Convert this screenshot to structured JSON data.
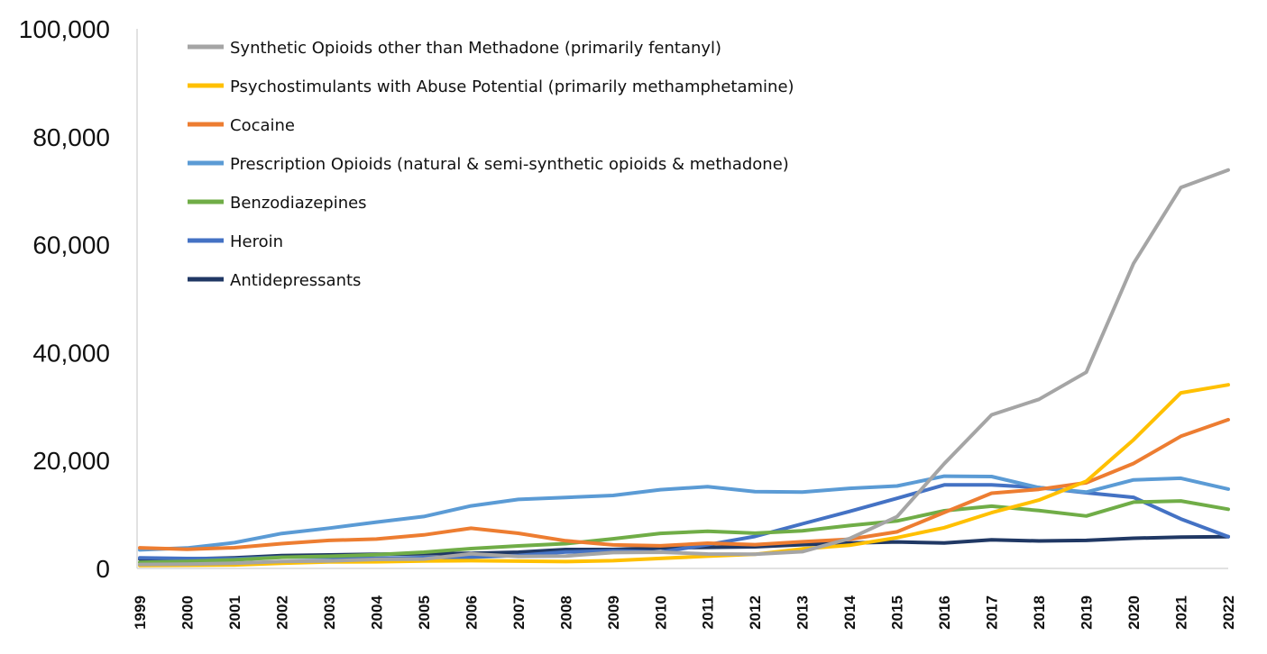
{
  "chart_data": {
    "type": "line",
    "title": "",
    "xlabel": "",
    "ylabel": "",
    "ylim": [
      0,
      100000
    ],
    "yticks": [
      "0",
      "20,000",
      "40,000",
      "60,000",
      "80,000",
      "100,000"
    ],
    "ytick_values": [
      0,
      20000,
      40000,
      60000,
      80000,
      100000
    ],
    "grid": false,
    "legend_position": "top-left",
    "x": [
      "1999",
      "2000",
      "2001",
      "2002",
      "2003",
      "2004",
      "2005",
      "2006",
      "2007",
      "2008",
      "2009",
      "2010",
      "2011",
      "2012",
      "2013",
      "2014",
      "2015",
      "2016",
      "2017",
      "2018",
      "2019",
      "2020",
      "2021",
      "2022"
    ],
    "series": [
      {
        "name": "Synthetic Opioids other than Methadone (primarily fentanyl)",
        "color": "#a5a5a5",
        "values": [
          730,
          782,
          957,
          1295,
          1400,
          1664,
          1742,
          2707,
          2213,
          2306,
          2946,
          3007,
          2666,
          2628,
          3105,
          5544,
          9580,
          19413,
          28466,
          31335,
          36359,
          56516,
          70601,
          73838
        ]
      },
      {
        "name": "Psychostimulants with Abuse Potential (primarily methamphetamine)",
        "color": "#ffc000",
        "values": [
          547,
          578,
          654,
          952,
          1207,
          1240,
          1368,
          1430,
          1344,
          1271,
          1436,
          1854,
          2266,
          2615,
          3627,
          4298,
          5716,
          7542,
          10333,
          12676,
          16167,
          23837,
          32537,
          34022
        ]
      },
      {
        "name": "Cocaine",
        "color": "#ed7d31",
        "values": [
          3822,
          3544,
          3833,
          4599,
          5199,
          5443,
          6208,
          7448,
          6512,
          5129,
          4350,
          4183,
          4681,
          4404,
          4944,
          5415,
          6784,
          10375,
          13942,
          14666,
          15883,
          19447,
          24486,
          27569
        ]
      },
      {
        "name": "Prescription Opioids (natural & semi-synthetic opioids & methadone)",
        "color": "#5b9bd5",
        "values": [
          3442,
          3785,
          4770,
          6484,
          7456,
          8577,
          9612,
          11589,
          12796,
          13149,
          13523,
          14583,
          15140,
          14240,
          14145,
          14838,
          15281,
          17087,
          17029,
          14975,
          14139,
          16416,
          16706,
          14716
        ]
      },
      {
        "name": "Benzodiazepines",
        "color": "#70ad47",
        "values": [
          1135,
          1298,
          1594,
          2076,
          2248,
          2537,
          3012,
          3676,
          4167,
          4591,
          5497,
          6497,
          6872,
          6524,
          6973,
          7945,
          8791,
          10684,
          11537,
          10724,
          9711,
          12290,
          12499,
          10964
        ]
      },
      {
        "name": "Heroin",
        "color": "#4472c4",
        "values": [
          1960,
          1842,
          1779,
          2089,
          2080,
          1878,
          2009,
          2088,
          2399,
          3041,
          3278,
          3036,
          4397,
          5925,
          8257,
          10574,
          12989,
          15469,
          15482,
          14996,
          14019,
          13165,
          9173,
          5871
        ]
      },
      {
        "name": "Antidepressants",
        "color": "#203864",
        "values": [
          1749,
          1749,
          1978,
          2375,
          2500,
          2620,
          2700,
          2800,
          3000,
          3500,
          3500,
          3800,
          3900,
          4000,
          4400,
          4700,
          4900,
          4700,
          5300,
          5100,
          5200,
          5600,
          5800,
          5900
        ]
      }
    ]
  }
}
